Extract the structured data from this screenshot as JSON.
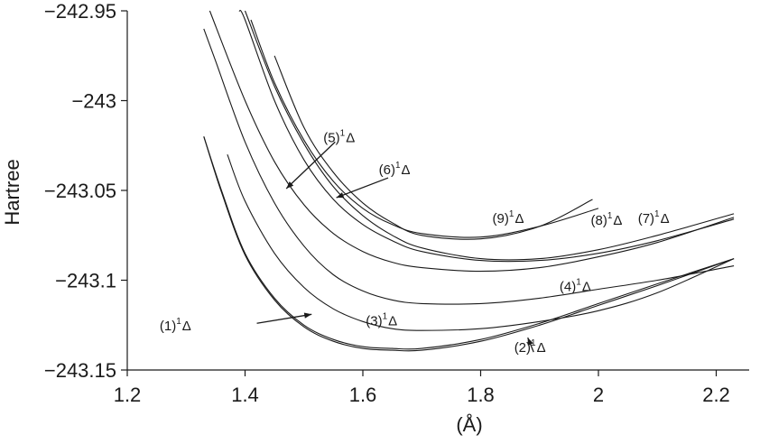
{
  "chart_data": {
    "type": "line",
    "xlabel": "(Å)",
    "ylabel": "Hartree",
    "xlim": [
      1.2,
      2.23
    ],
    "ylim": [
      -243.15,
      -242.95
    ],
    "xticks": [
      1.2,
      1.4,
      1.6,
      1.8,
      2.0,
      2.2
    ],
    "xtick_labels": [
      "1.2",
      "1.4",
      "1.6",
      "1.8",
      "2",
      "2.2"
    ],
    "yticks": [
      -242.95,
      -243.0,
      -243.05,
      -243.1,
      -243.15
    ],
    "ytick_labels": [
      "−242.95",
      "−243",
      "−243.05",
      "−243.1",
      "−243.15"
    ],
    "grid": false,
    "series": [
      {
        "x": [
          1.33,
          1.36,
          1.4,
          1.45,
          1.5,
          1.55,
          1.6,
          1.65,
          1.7,
          1.8,
          1.9,
          2.0,
          2.1,
          2.23
        ],
        "y": [
          -243.02,
          -243.051,
          -243.086,
          -243.111,
          -243.126,
          -243.134,
          -243.138,
          -243.139,
          -243.139,
          -243.134,
          -243.125,
          -243.114,
          -243.103,
          -243.088
        ]
      },
      {
        "x": [
          1.33,
          1.36,
          1.4,
          1.45,
          1.5,
          1.55,
          1.6,
          1.65,
          1.7,
          1.8,
          1.9,
          2.0,
          2.1,
          2.23
        ],
        "y": [
          -243.02,
          -243.05,
          -243.085,
          -243.11,
          -243.125,
          -243.133,
          -243.137,
          -243.138,
          -243.138,
          -243.133,
          -243.124,
          -243.113,
          -243.102,
          -243.088
        ]
      },
      {
        "x": [
          1.37,
          1.4,
          1.45,
          1.5,
          1.55,
          1.6,
          1.65,
          1.7,
          1.8,
          1.9,
          2.0,
          2.1,
          2.23
        ],
        "y": [
          -243.03,
          -243.056,
          -243.085,
          -243.104,
          -243.116,
          -243.123,
          -243.127,
          -243.128,
          -243.127,
          -243.123,
          -243.117,
          -243.107,
          -243.088
        ]
      },
      {
        "x": [
          1.33,
          1.35,
          1.4,
          1.45,
          1.5,
          1.55,
          1.6,
          1.65,
          1.7,
          1.8,
          1.9,
          2.0,
          2.1,
          2.23
        ],
        "y": [
          -242.96,
          -242.978,
          -243.023,
          -243.057,
          -243.081,
          -243.097,
          -243.106,
          -243.111,
          -243.113,
          -243.113,
          -243.11,
          -243.105,
          -243.1,
          -243.092
        ]
      },
      {
        "x": [
          1.34,
          1.4,
          1.45,
          1.5,
          1.55,
          1.6,
          1.65,
          1.7,
          1.8,
          1.9,
          2.0,
          2.1,
          2.23
        ],
        "y": [
          -242.95,
          -243.0,
          -243.034,
          -243.058,
          -243.074,
          -243.084,
          -243.09,
          -243.093,
          -243.095,
          -243.093,
          -243.087,
          -243.079,
          -243.065
        ]
      },
      {
        "x": [
          1.39,
          1.4,
          1.45,
          1.5,
          1.55,
          1.6,
          1.65,
          1.7,
          1.8,
          1.9,
          2.0,
          2.1,
          2.23
        ],
        "y": [
          -242.95,
          -242.955,
          -243.0,
          -243.033,
          -243.055,
          -243.069,
          -243.078,
          -243.084,
          -243.089,
          -243.089,
          -243.085,
          -243.078,
          -243.066
        ]
      },
      {
        "x": [
          1.4,
          1.45,
          1.5,
          1.55,
          1.6,
          1.65,
          1.7,
          1.8,
          1.9,
          2.0,
          2.1,
          2.23
        ],
        "y": [
          -242.95,
          -242.992,
          -243.024,
          -243.048,
          -243.064,
          -243.075,
          -243.082,
          -243.088,
          -243.088,
          -243.083,
          -243.075,
          -243.063
        ]
      },
      {
        "x": [
          1.41,
          1.45,
          1.5,
          1.55,
          1.6,
          1.65,
          1.7,
          1.8,
          1.9,
          2.0
        ],
        "y": [
          -242.955,
          -242.99,
          -243.022,
          -243.045,
          -243.06,
          -243.069,
          -243.074,
          -243.076,
          -243.07,
          -243.06
        ]
      },
      {
        "x": [
          1.45,
          1.5,
          1.55,
          1.6,
          1.65,
          1.7,
          1.8,
          1.9,
          1.99
        ],
        "y": [
          -242.975,
          -243.015,
          -243.04,
          -243.057,
          -243.068,
          -243.075,
          -243.077,
          -243.07,
          -243.055
        ]
      }
    ],
    "annotations": [
      {
        "label": "(1)",
        "sup": "1",
        "after": "Δ",
        "x": 1.255,
        "y": -243.128
      },
      {
        "label": "(2)",
        "sup": "1",
        "after": "Δ",
        "x": 1.857,
        "y": -243.14
      },
      {
        "label": "(3)",
        "sup": "1",
        "after": "Δ",
        "x": 1.605,
        "y": -243.125
      },
      {
        "label": "(4)",
        "sup": "1",
        "after": "Δ",
        "x": 1.934,
        "y": -243.106
      },
      {
        "label": "(5)",
        "sup": "1",
        "after": "Δ",
        "x": 1.533,
        "y": -243.023
      },
      {
        "label": "(6)",
        "sup": "1",
        "after": "Δ",
        "x": 1.627,
        "y": -243.041
      },
      {
        "label": "(7)",
        "sup": "1",
        "after": "Δ",
        "x": 2.067,
        "y": -243.068
      },
      {
        "label": "(8)",
        "sup": "1",
        "after": "Δ",
        "x": 1.987,
        "y": -243.069
      },
      {
        "label": "(9)",
        "sup": "1",
        "after": "Δ",
        "x": 1.82,
        "y": -243.068
      }
    ],
    "arrows": [
      {
        "from": [
          1.42,
          -243.124
        ],
        "to": [
          1.513,
          -243.119
        ]
      },
      {
        "from": [
          1.89,
          -243.14
        ],
        "to": [
          1.88,
          -243.132
        ]
      },
      {
        "from": [
          1.553,
          -243.023
        ],
        "to": [
          1.47,
          -243.049
        ]
      },
      {
        "from": [
          1.643,
          -243.043
        ],
        "to": [
          1.555,
          -243.054
        ]
      }
    ]
  }
}
